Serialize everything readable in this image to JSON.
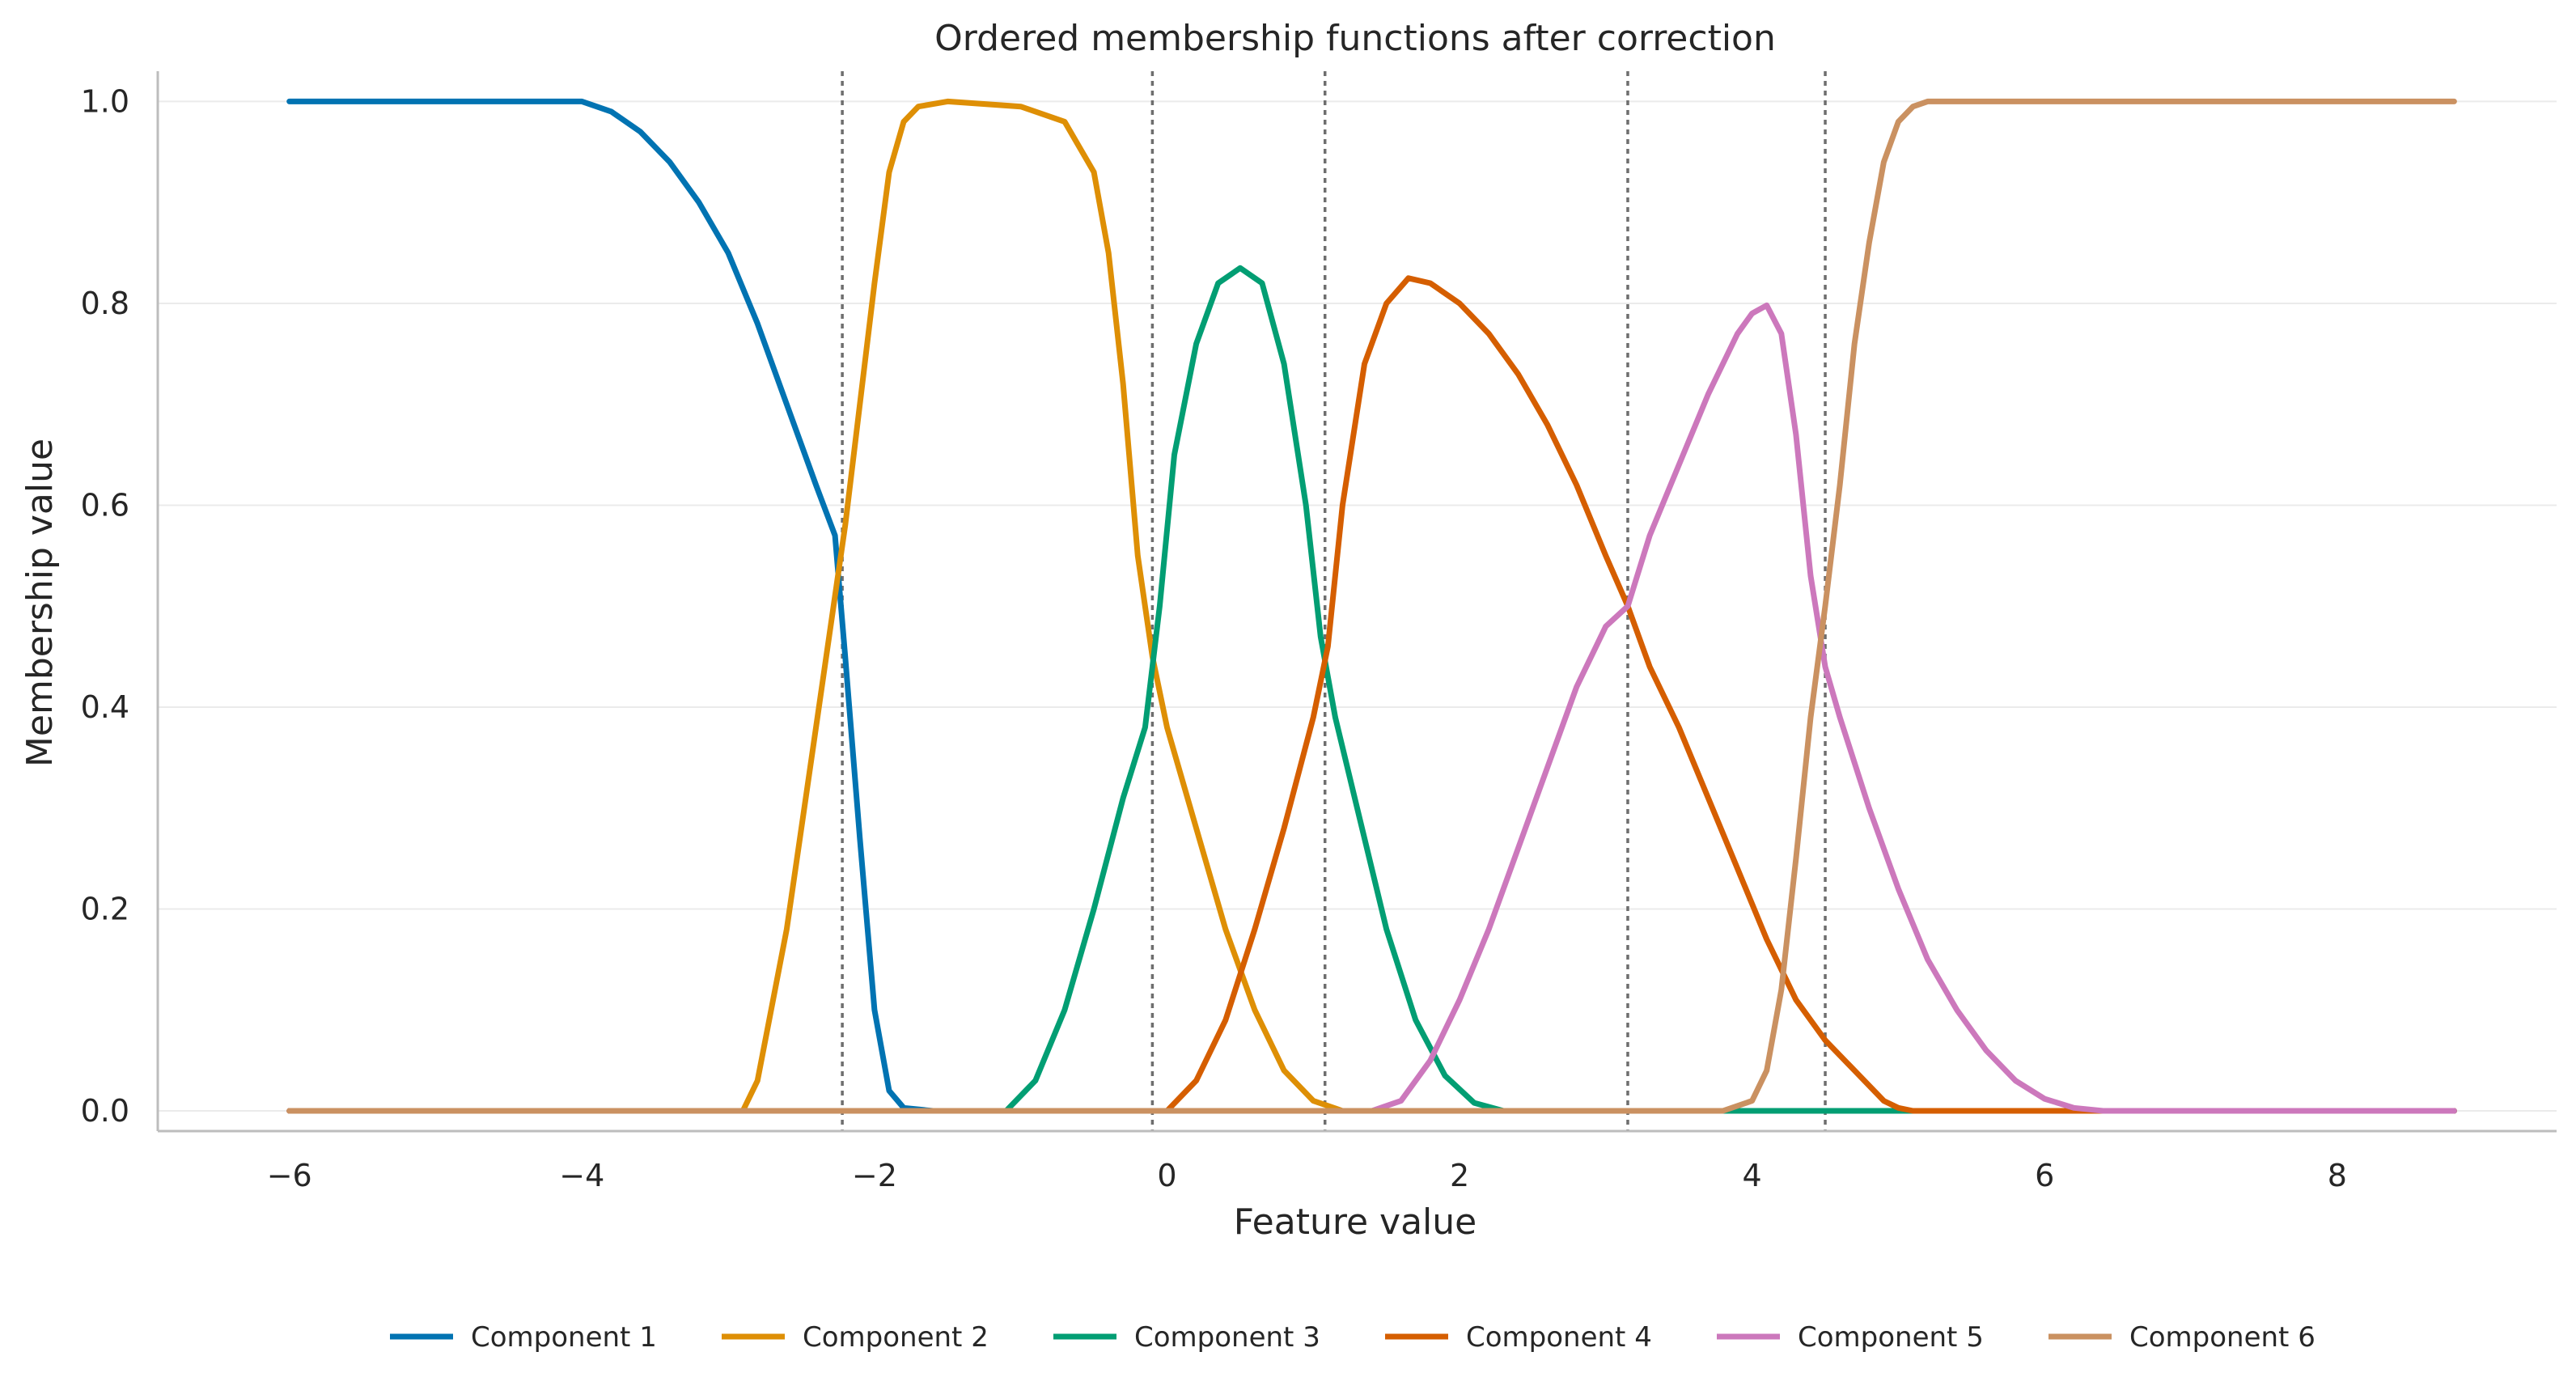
{
  "chart_data": {
    "type": "line",
    "title": "Ordered membership functions after correction",
    "xlabel": "Feature value",
    "ylabel": "Membership value",
    "xlim": [
      -6.9,
      9.5
    ],
    "ylim": [
      -0.02,
      1.03
    ],
    "xticks": [
      -6,
      -4,
      -2,
      0,
      2,
      4,
      6,
      8
    ],
    "xtick_labels": [
      "−6",
      "−4",
      "−2",
      "0",
      "2",
      "4",
      "6",
      "8"
    ],
    "yticks": [
      0.0,
      0.2,
      0.4,
      0.6,
      0.8,
      1.0
    ],
    "ytick_labels": [
      "0.0",
      "0.2",
      "0.4",
      "0.6",
      "0.8",
      "1.0"
    ],
    "grid": "horizontal",
    "legend_position": "bottom-center",
    "boundaries": [
      -2.22,
      -0.1,
      1.08,
      3.15,
      4.5
    ],
    "series": [
      {
        "name": "Component 1",
        "color": "#0173b2",
        "points": [
          [
            -6.0,
            1.0
          ],
          [
            -4.0,
            1.0
          ],
          [
            -3.8,
            0.99
          ],
          [
            -3.6,
            0.97
          ],
          [
            -3.4,
            0.94
          ],
          [
            -3.2,
            0.9
          ],
          [
            -3.0,
            0.85
          ],
          [
            -2.8,
            0.78
          ],
          [
            -2.6,
            0.7
          ],
          [
            -2.4,
            0.62
          ],
          [
            -2.27,
            0.57
          ],
          [
            -2.2,
            0.45
          ],
          [
            -2.1,
            0.27
          ],
          [
            -2.0,
            0.1
          ],
          [
            -1.9,
            0.02
          ],
          [
            -1.8,
            0.003
          ],
          [
            -1.6,
            0.0
          ],
          [
            8.8,
            0.0
          ]
        ]
      },
      {
        "name": "Component 2",
        "color": "#de8f05",
        "points": [
          [
            -6.0,
            0.0
          ],
          [
            -2.9,
            0.0
          ],
          [
            -2.8,
            0.03
          ],
          [
            -2.6,
            0.18
          ],
          [
            -2.4,
            0.38
          ],
          [
            -2.2,
            0.58
          ],
          [
            -2.0,
            0.82
          ],
          [
            -1.9,
            0.93
          ],
          [
            -1.8,
            0.98
          ],
          [
            -1.7,
            0.995
          ],
          [
            -1.5,
            1.0
          ],
          [
            -1.0,
            0.995
          ],
          [
            -0.7,
            0.98
          ],
          [
            -0.5,
            0.93
          ],
          [
            -0.4,
            0.85
          ],
          [
            -0.3,
            0.72
          ],
          [
            -0.2,
            0.55
          ],
          [
            -0.1,
            0.45
          ],
          [
            0.0,
            0.38
          ],
          [
            0.2,
            0.28
          ],
          [
            0.4,
            0.18
          ],
          [
            0.6,
            0.1
          ],
          [
            0.8,
            0.04
          ],
          [
            1.0,
            0.01
          ],
          [
            1.2,
            0.0
          ],
          [
            8.8,
            0.0
          ]
        ]
      },
      {
        "name": "Component 3",
        "color": "#029e73",
        "points": [
          [
            -6.0,
            0.0
          ],
          [
            -1.1,
            0.0
          ],
          [
            -0.9,
            0.03
          ],
          [
            -0.7,
            0.1
          ],
          [
            -0.5,
            0.2
          ],
          [
            -0.3,
            0.31
          ],
          [
            -0.15,
            0.38
          ],
          [
            -0.05,
            0.5
          ],
          [
            0.05,
            0.65
          ],
          [
            0.2,
            0.76
          ],
          [
            0.35,
            0.82
          ],
          [
            0.5,
            0.835
          ],
          [
            0.65,
            0.82
          ],
          [
            0.8,
            0.74
          ],
          [
            0.95,
            0.6
          ],
          [
            1.05,
            0.47
          ],
          [
            1.15,
            0.39
          ],
          [
            1.3,
            0.3
          ],
          [
            1.5,
            0.18
          ],
          [
            1.7,
            0.09
          ],
          [
            1.9,
            0.035
          ],
          [
            2.1,
            0.008
          ],
          [
            2.3,
            0.0
          ],
          [
            8.8,
            0.0
          ]
        ]
      },
      {
        "name": "Component 4",
        "color": "#d55e00",
        "points": [
          [
            -6.0,
            0.0
          ],
          [
            0.0,
            0.0
          ],
          [
            0.2,
            0.03
          ],
          [
            0.4,
            0.09
          ],
          [
            0.6,
            0.18
          ],
          [
            0.8,
            0.28
          ],
          [
            1.0,
            0.39
          ],
          [
            1.1,
            0.46
          ],
          [
            1.2,
            0.6
          ],
          [
            1.35,
            0.74
          ],
          [
            1.5,
            0.8
          ],
          [
            1.65,
            0.825
          ],
          [
            1.8,
            0.82
          ],
          [
            2.0,
            0.8
          ],
          [
            2.2,
            0.77
          ],
          [
            2.4,
            0.73
          ],
          [
            2.6,
            0.68
          ],
          [
            2.8,
            0.62
          ],
          [
            3.0,
            0.55
          ],
          [
            3.15,
            0.5
          ],
          [
            3.3,
            0.44
          ],
          [
            3.5,
            0.38
          ],
          [
            3.7,
            0.31
          ],
          [
            3.9,
            0.24
          ],
          [
            4.1,
            0.17
          ],
          [
            4.3,
            0.11
          ],
          [
            4.5,
            0.07
          ],
          [
            4.7,
            0.04
          ],
          [
            4.9,
            0.01
          ],
          [
            5.0,
            0.003
          ],
          [
            5.1,
            0.0
          ],
          [
            8.8,
            0.0
          ]
        ]
      },
      {
        "name": "Component 5",
        "color": "#cc78bc",
        "points": [
          [
            -6.0,
            0.0
          ],
          [
            1.4,
            0.0
          ],
          [
            1.6,
            0.01
          ],
          [
            1.8,
            0.05
          ],
          [
            2.0,
            0.11
          ],
          [
            2.2,
            0.18
          ],
          [
            2.4,
            0.26
          ],
          [
            2.6,
            0.34
          ],
          [
            2.8,
            0.42
          ],
          [
            3.0,
            0.48
          ],
          [
            3.15,
            0.5
          ],
          [
            3.3,
            0.57
          ],
          [
            3.5,
            0.64
          ],
          [
            3.7,
            0.71
          ],
          [
            3.9,
            0.77
          ],
          [
            4.0,
            0.79
          ],
          [
            4.1,
            0.798
          ],
          [
            4.2,
            0.77
          ],
          [
            4.3,
            0.67
          ],
          [
            4.4,
            0.53
          ],
          [
            4.5,
            0.44
          ],
          [
            4.6,
            0.39
          ],
          [
            4.8,
            0.3
          ],
          [
            5.0,
            0.22
          ],
          [
            5.2,
            0.15
          ],
          [
            5.4,
            0.1
          ],
          [
            5.6,
            0.06
          ],
          [
            5.8,
            0.03
          ],
          [
            6.0,
            0.012
          ],
          [
            6.2,
            0.003
          ],
          [
            6.4,
            0.0
          ],
          [
            8.8,
            0.0
          ]
        ]
      },
      {
        "name": "Component 6",
        "color": "#ca9161",
        "points": [
          [
            -6.0,
            0.0
          ],
          [
            3.8,
            0.0
          ],
          [
            4.0,
            0.01
          ],
          [
            4.1,
            0.04
          ],
          [
            4.2,
            0.12
          ],
          [
            4.3,
            0.25
          ],
          [
            4.4,
            0.39
          ],
          [
            4.5,
            0.5
          ],
          [
            4.6,
            0.62
          ],
          [
            4.7,
            0.76
          ],
          [
            4.8,
            0.86
          ],
          [
            4.9,
            0.94
          ],
          [
            5.0,
            0.98
          ],
          [
            5.1,
            0.995
          ],
          [
            5.2,
            1.0
          ],
          [
            8.8,
            1.0
          ]
        ]
      }
    ]
  }
}
